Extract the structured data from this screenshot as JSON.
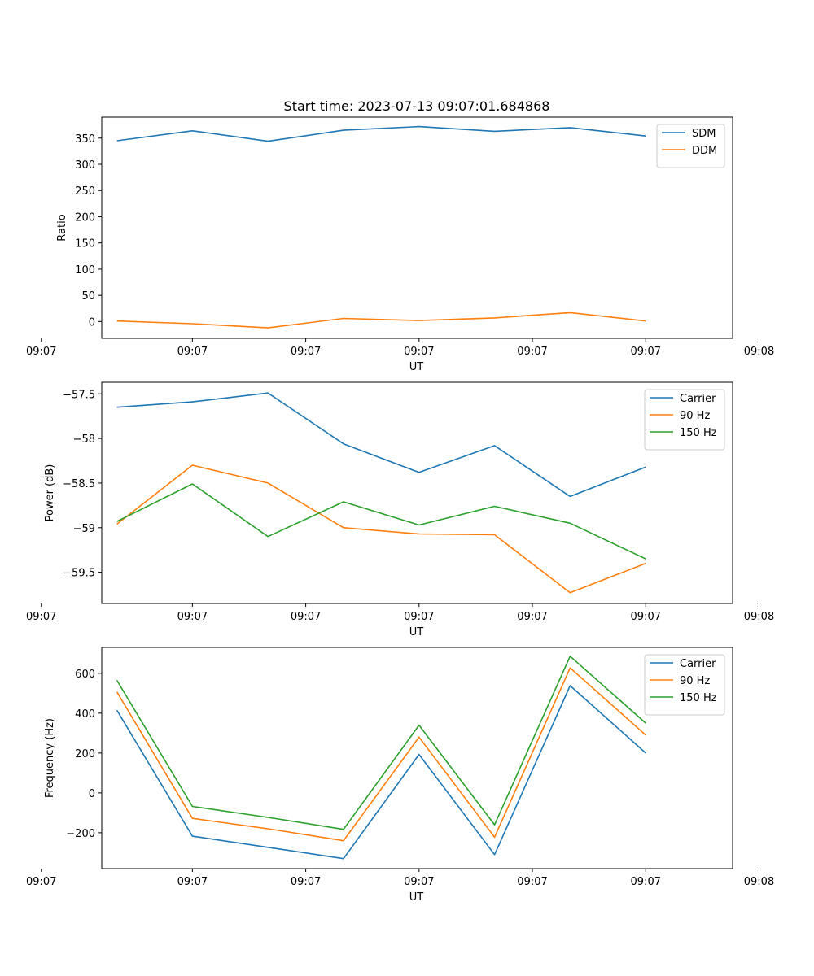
{
  "title": "Start time: 2023-07-13 09:07:01.684868",
  "colors": {
    "series1": "#1f77b4",
    "series2": "#ff7f0e",
    "series3": "#2ca02c",
    "axis": "#000000",
    "legend_border": "#cccccc"
  },
  "chart_data": [
    {
      "type": "line",
      "ylabel": "Ratio",
      "xlabel": "UT",
      "x": [
        1,
        2,
        3,
        4,
        5,
        6,
        7,
        8
      ],
      "xlim": [
        0.8,
        9.15
      ],
      "ylim": [
        -32,
        390
      ],
      "xticks": [
        {
          "pos": 0,
          "label": "09:07"
        },
        {
          "pos": 2,
          "label": "09:07"
        },
        {
          "pos": 3.5,
          "label": "09:07"
        },
        {
          "pos": 5,
          "label": "09:07"
        },
        {
          "pos": 6.5,
          "label": "09:07"
        },
        {
          "pos": 8,
          "label": "09:07"
        },
        {
          "pos": 9.5,
          "label": "09:08"
        }
      ],
      "yticks": [
        0,
        50,
        100,
        150,
        200,
        250,
        300,
        350
      ],
      "legend_position": "top-right",
      "series": [
        {
          "name": "SDM",
          "color": "#1f77b4",
          "values": [
            345,
            364,
            344,
            365,
            372,
            363,
            370,
            354
          ]
        },
        {
          "name": "DDM",
          "color": "#ff7f0e",
          "values": [
            1,
            -4,
            -12,
            6,
            2,
            7,
            17,
            1
          ]
        }
      ]
    },
    {
      "type": "line",
      "ylabel": "Power (dB)",
      "xlabel": "UT",
      "x": [
        1,
        2,
        3,
        4,
        5,
        6,
        7,
        8
      ],
      "xlim": [
        0.8,
        9.15
      ],
      "ylim": [
        -59.85,
        -57.37
      ],
      "xticks": [
        {
          "pos": 0,
          "label": "09:07"
        },
        {
          "pos": 2,
          "label": "09:07"
        },
        {
          "pos": 3.5,
          "label": "09:07"
        },
        {
          "pos": 5,
          "label": "09:07"
        },
        {
          "pos": 6.5,
          "label": "09:07"
        },
        {
          "pos": 8,
          "label": "09:07"
        },
        {
          "pos": 9.5,
          "label": "09:08"
        }
      ],
      "yticks": [
        -57.5,
        -58.0,
        -58.5,
        -59.0,
        -59.5
      ],
      "legend_position": "top-right",
      "series": [
        {
          "name": "Carrier",
          "color": "#1f77b4",
          "values": [
            -57.65,
            -57.59,
            -57.49,
            -58.06,
            -58.38,
            -58.08,
            -58.65,
            -58.32
          ]
        },
        {
          "name": "90 Hz",
          "color": "#ff7f0e",
          "values": [
            -58.96,
            -58.3,
            -58.5,
            -59.0,
            -59.07,
            -59.08,
            -59.73,
            -59.4
          ]
        },
        {
          "name": "150 Hz",
          "color": "#2ca02c",
          "values": [
            -58.93,
            -58.51,
            -59.1,
            -58.71,
            -58.97,
            -58.76,
            -58.95,
            -59.35
          ]
        }
      ]
    },
    {
      "type": "line",
      "ylabel": "Frequency (Hz)",
      "xlabel": "UT",
      "x": [
        1,
        2,
        3,
        4,
        5,
        6,
        7,
        8
      ],
      "xlim": [
        0.8,
        9.15
      ],
      "ylim": [
        -380,
        730
      ],
      "xticks": [
        {
          "pos": 0,
          "label": "09:07"
        },
        {
          "pos": 2,
          "label": "09:07"
        },
        {
          "pos": 3.5,
          "label": "09:07"
        },
        {
          "pos": 5,
          "label": "09:07"
        },
        {
          "pos": 6.5,
          "label": "09:07"
        },
        {
          "pos": 8,
          "label": "09:07"
        },
        {
          "pos": 9.5,
          "label": "09:08"
        }
      ],
      "yticks": [
        -200,
        0,
        200,
        400,
        600
      ],
      "legend_position": "top-right",
      "series": [
        {
          "name": "Carrier",
          "color": "#1f77b4",
          "values": [
            415,
            -217,
            -273,
            -330,
            193,
            -310,
            538,
            200
          ]
        },
        {
          "name": "90 Hz",
          "color": "#ff7f0e",
          "values": [
            507,
            -128,
            -180,
            -240,
            280,
            -222,
            627,
            290
          ]
        },
        {
          "name": "150 Hz",
          "color": "#2ca02c",
          "values": [
            565,
            -68,
            -123,
            -183,
            340,
            -160,
            686,
            350
          ]
        }
      ]
    }
  ]
}
